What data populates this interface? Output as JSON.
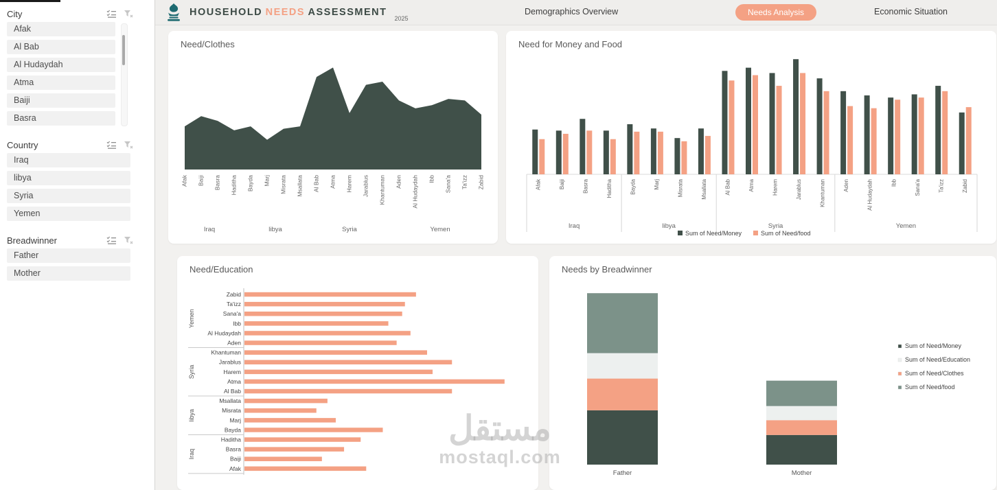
{
  "header": {
    "title": {
      "part1": "HOUSEHOLD",
      "part2": "NEEDS",
      "part3": "ASSESSMENT",
      "year": "2025"
    },
    "tabs": [
      {
        "label": "Demographics Overview",
        "active": false
      },
      {
        "label": "Needs Analysis",
        "active": true
      },
      {
        "label": "Economic Situation",
        "active": false
      }
    ]
  },
  "sidebar": {
    "slicers": [
      {
        "title": "City",
        "items": [
          "Afak",
          "Al Bab",
          "Al Hudaydah",
          "Atma",
          "Baiji",
          "Basra"
        ],
        "scrollbar": true
      },
      {
        "title": "Country",
        "items": [
          "Iraq",
          "libya",
          "Syria",
          "Yemen"
        ],
        "scrollbar": false
      },
      {
        "title": "Breadwinner",
        "items": [
          "Father",
          "Mother"
        ],
        "scrollbar": false
      }
    ]
  },
  "colors": {
    "dark": "#405049",
    "salmon": "#f4a184",
    "grayGreen": "#7c9289",
    "lightSeg": "#edf0ef",
    "axis": "#c9c9c9",
    "label": "#666666"
  },
  "watermark": {
    "line1": "مستقل",
    "line2": "mostaql.com"
  },
  "chart_data": [
    {
      "type": "area",
      "title": "Need/Clothes",
      "categories": [
        "Afak",
        "Baiji",
        "Basra",
        "Haditha",
        "Bayda",
        "Marj",
        "Misrata",
        "Msallata",
        "Al Bab",
        "Atma",
        "Harem",
        "Jarablus",
        "Khantuman",
        "Aden",
        "Al Hudaydah",
        "Ibb",
        "Sana'a",
        "Ta'izz",
        "Zabid"
      ],
      "groups": [
        {
          "label": "Iraq",
          "span": [
            0,
            3
          ]
        },
        {
          "label": "libya",
          "span": [
            4,
            7
          ]
        },
        {
          "label": "Syria",
          "span": [
            8,
            12
          ]
        },
        {
          "label": "Yemen",
          "span": [
            13,
            18
          ]
        }
      ],
      "values": [
        55,
        68,
        62,
        50,
        55,
        38,
        52,
        55,
        118,
        130,
        72,
        108,
        112,
        88,
        78,
        82,
        90,
        88,
        70
      ],
      "ylim": [
        0,
        140
      ],
      "grid": false,
      "legend": false,
      "seriesColorKey": "dark"
    },
    {
      "type": "bar",
      "title": "Need for Money and Food",
      "categories": [
        "Afak",
        "Baiji",
        "Basra",
        "Haditha",
        "Bayda",
        "Marj",
        "Misrata",
        "Msallata",
        "Al Bab",
        "Atma",
        "Harem",
        "Jarablus",
        "Khantuman",
        "Aden",
        "Al Hudaydah",
        "Ibb",
        "Sana'a",
        "Ta'izz",
        "Zabid"
      ],
      "groups": [
        {
          "label": "Iraq",
          "span": [
            0,
            3
          ]
        },
        {
          "label": "libya",
          "span": [
            4,
            7
          ]
        },
        {
          "label": "Syria",
          "span": [
            8,
            12
          ]
        },
        {
          "label": "Yemen",
          "span": [
            13,
            18
          ]
        }
      ],
      "series": [
        {
          "name": "Sum of Need/Money",
          "colorKey": "dark",
          "values": [
            42,
            41,
            52,
            41,
            47,
            43,
            34,
            43,
            97,
            100,
            95,
            108,
            90,
            78,
            74,
            72,
            75,
            83,
            58
          ]
        },
        {
          "name": "Sum of Need/food",
          "colorKey": "salmon",
          "values": [
            33,
            38,
            41,
            33,
            40,
            40,
            31,
            36,
            88,
            93,
            83,
            95,
            78,
            64,
            62,
            70,
            72,
            78,
            63
          ]
        }
      ],
      "ylim": [
        0,
        112
      ],
      "grid": false,
      "legend_position": "bottom"
    },
    {
      "type": "bar",
      "orientation": "horizontal",
      "title": "Need/Education",
      "categories": [
        "Zabid",
        "Ta'izz",
        "Sana'a",
        "Ibb",
        "Al Hudaydah",
        "Aden",
        "Khantuman",
        "Jarablus",
        "Harem",
        "Atma",
        "Al Bab",
        "Msallata",
        "Misrata",
        "Marj",
        "Bayda",
        "Haditha",
        "Basra",
        "Baiji",
        "Afak"
      ],
      "groups": [
        {
          "label": "Yemen",
          "span": [
            0,
            5
          ]
        },
        {
          "label": "Syria",
          "span": [
            6,
            10
          ]
        },
        {
          "label": "libya",
          "span": [
            11,
            14
          ]
        },
        {
          "label": "Iraq",
          "span": [
            15,
            18
          ]
        }
      ],
      "values": [
        62,
        58,
        57,
        52,
        60,
        55,
        66,
        75,
        68,
        94,
        75,
        30,
        26,
        33,
        50,
        42,
        36,
        28,
        44
      ],
      "xlim": [
        0,
        100
      ],
      "grid": false,
      "legend": false,
      "seriesColorKey": "salmon"
    },
    {
      "type": "bar",
      "stacked": true,
      "title": "Needs by Breadwinner",
      "categories": [
        "Father",
        "Mother"
      ],
      "series": [
        {
          "name": "Sum of Need/Money",
          "colorKey": "dark",
          "values": [
            77,
            42
          ]
        },
        {
          "name": "Sum of Need/Clothes",
          "colorKey": "salmon",
          "values": [
            45,
            21
          ]
        },
        {
          "name": "Sum of Need/Education",
          "colorKey": "lightSeg",
          "values": [
            36,
            20
          ]
        },
        {
          "name": "Sum of Need/food",
          "colorKey": "grayGreen",
          "values": [
            85,
            36
          ]
        }
      ],
      "legend_order": [
        "Sum of Need/Money",
        "Sum of Need/Education",
        "Sum of Need/Clothes",
        "Sum of Need/food"
      ],
      "legend_position": "right",
      "ylim": [
        0,
        250
      ],
      "grid": false
    }
  ]
}
